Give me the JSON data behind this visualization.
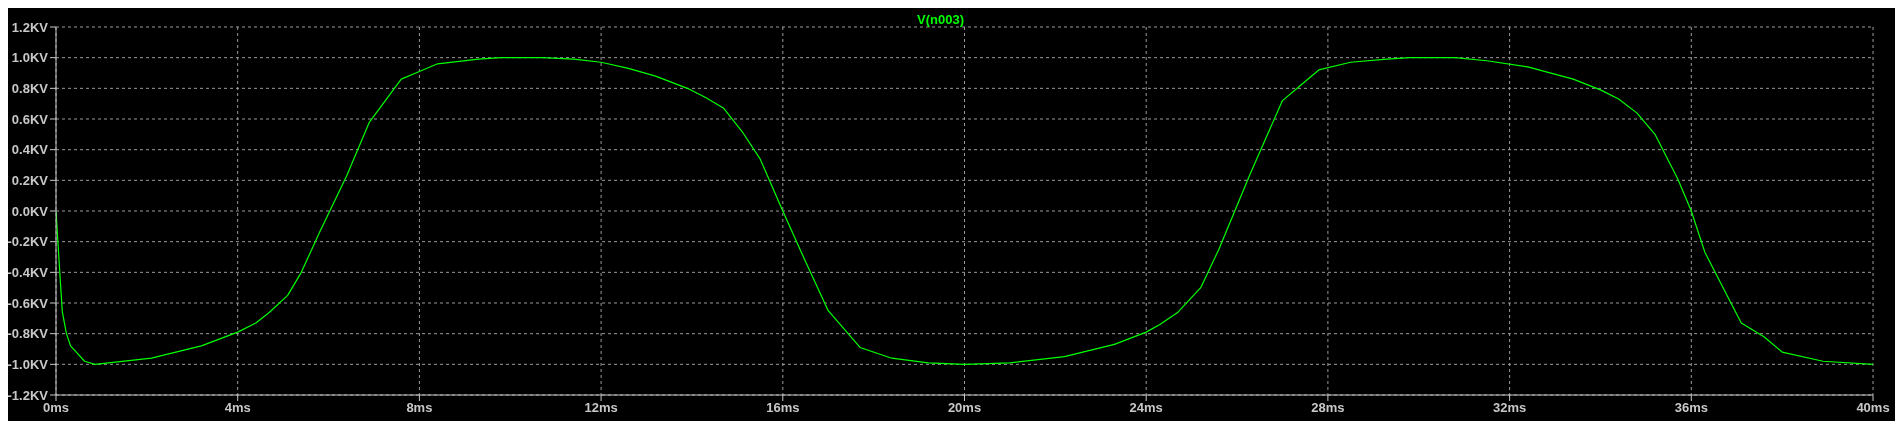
{
  "chart_data": {
    "type": "line",
    "legend": "top",
    "grid": true,
    "xlim": [
      0,
      40
    ],
    "xticks": [
      {
        "value": 0,
        "label": "0ms"
      },
      {
        "value": 4,
        "label": "4ms"
      },
      {
        "value": 8,
        "label": "8ms"
      },
      {
        "value": 12,
        "label": "12ms"
      },
      {
        "value": 16,
        "label": "16ms"
      },
      {
        "value": 20,
        "label": "20ms"
      },
      {
        "value": 24,
        "label": "24ms"
      },
      {
        "value": 28,
        "label": "28ms"
      },
      {
        "value": 32,
        "label": "32ms"
      },
      {
        "value": 36,
        "label": "36ms"
      },
      {
        "value": 40,
        "label": "40ms"
      }
    ],
    "ylim": [
      -1.2,
      1.2
    ],
    "yticks": [
      {
        "value": -1.2,
        "label": "-1.2KV"
      },
      {
        "value": -1.0,
        "label": "-1.0KV"
      },
      {
        "value": -0.8,
        "label": "-0.8KV"
      },
      {
        "value": -0.6,
        "label": "-0.6KV"
      },
      {
        "value": -0.4,
        "label": "-0.4KV"
      },
      {
        "value": -0.2,
        "label": "-0.2KV"
      },
      {
        "value": 0,
        "label": "0.0KV"
      },
      {
        "value": 0.2,
        "label": "0.2KV"
      },
      {
        "value": 0.4,
        "label": "0.4KV"
      },
      {
        "value": 0.6,
        "label": "0.6KV"
      },
      {
        "value": 0.8,
        "label": "0.8KV"
      },
      {
        "value": 1.0,
        "label": "1.0KV"
      },
      {
        "value": 1.2,
        "label": "1.2KV"
      }
    ],
    "x": [
      0,
      0.05,
      0.1,
      0.14,
      0.23,
      0.32,
      0.63,
      0.86,
      2.1,
      3.2,
      4.0,
      4.4,
      4.7,
      5.1,
      5.4,
      5.8,
      6.4,
      6.9,
      7.6,
      8.0,
      8.4,
      9.3,
      9.8,
      10.7,
      11.4,
      12.0,
      12.6,
      13.2,
      13.9,
      14.3,
      14.7,
      15.1,
      15.5,
      16.0,
      16.5,
      17.0,
      17.7,
      18.4,
      19.2,
      20.0,
      21.0,
      22.2,
      23.3,
      24.0,
      24.3,
      24.7,
      25.2,
      25.6,
      26.3,
      27.0,
      27.4,
      27.8,
      28.5,
      29.3,
      29.8,
      30.8,
      31.5,
      32.4,
      33.4,
      34.0,
      34.4,
      34.8,
      35.2,
      35.7,
      36.0,
      36.3,
      36.7,
      37.1,
      37.6,
      38.0,
      38.9,
      40.0
    ],
    "series": [
      {
        "name": "V(n003)",
        "color": "#00ff00",
        "values": [
          0,
          -0.24,
          -0.48,
          -0.66,
          -0.8,
          -0.88,
          -0.98,
          -1.0,
          -0.96,
          -0.88,
          -0.79,
          -0.73,
          -0.66,
          -0.55,
          -0.4,
          -0.14,
          0.23,
          0.58,
          0.86,
          0.91,
          0.96,
          0.99,
          1.0,
          1.0,
          0.99,
          0.97,
          0.93,
          0.88,
          0.8,
          0.74,
          0.67,
          0.52,
          0.34,
          0.0,
          -0.33,
          -0.65,
          -0.89,
          -0.96,
          -0.99,
          -1.0,
          -0.99,
          -0.95,
          -0.87,
          -0.79,
          -0.74,
          -0.66,
          -0.5,
          -0.25,
          0.25,
          0.72,
          0.82,
          0.92,
          0.97,
          0.99,
          1.0,
          1.0,
          0.98,
          0.94,
          0.86,
          0.79,
          0.73,
          0.64,
          0.5,
          0.21,
          0.0,
          -0.27,
          -0.5,
          -0.73,
          -0.82,
          -0.92,
          -0.98,
          -1.0
        ]
      }
    ]
  }
}
